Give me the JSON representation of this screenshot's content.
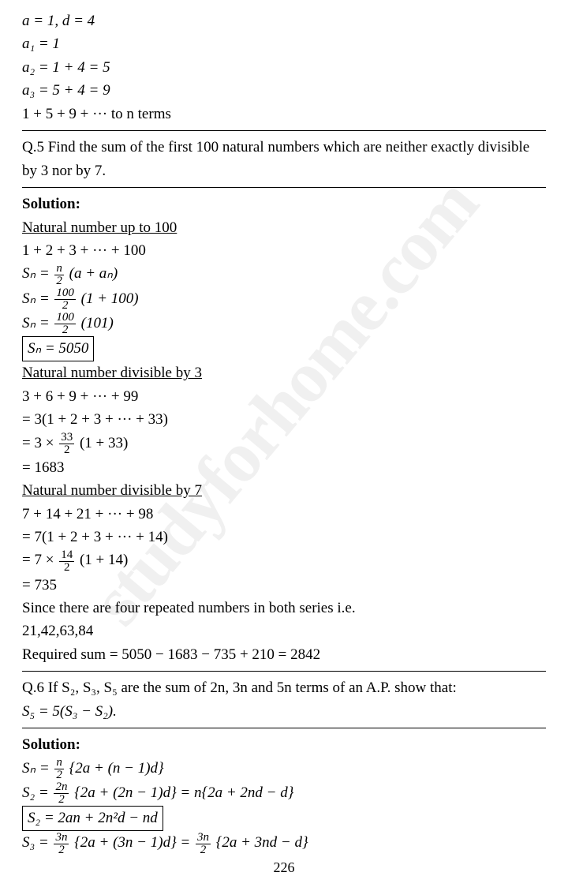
{
  "watermark": "studyforhome.com",
  "page_number": "226",
  "top": {
    "l1": "a = 1, d = 4",
    "l2": "a₁ = 1",
    "l3": "a₂ = 1 + 4 = 5",
    "l4": "a₃ = 5 + 4 = 9",
    "l5": "1 + 5 + 9 + ··· to n terms"
  },
  "q5": {
    "text": "Q.5 Find the sum of the first 100 natural numbers which are neither exactly divisible by 3 nor by 7.",
    "sol_label": "Solution:",
    "h1": "Natural number up to 100",
    "s1": "1 + 2 + 3 + ··· + 100",
    "s2_pre": "Sₙ = ",
    "s2_num": "n",
    "s2_den": "2",
    "s2_post": " (a + aₙ)",
    "s3_pre": "Sₙ = ",
    "s3_num": "100",
    "s3_den": "2",
    "s3_post": " (1 + 100)",
    "s4_pre": "Sₙ = ",
    "s4_num": "100",
    "s4_den": "2",
    "s4_post": " (101)",
    "s5": "Sₙ = 5050",
    "h2": "Natural number divisible by 3",
    "d3a": "3 + 6 + 9 + ··· + 99",
    "d3b": "= 3(1 + 2 + 3 + ··· + 33)",
    "d3c_pre": "= 3 × ",
    "d3c_num": "33",
    "d3c_den": "2",
    "d3c_post": " (1 + 33)",
    "d3d": "= 1683",
    "h3": "Natural number divisible by 7",
    "d7a": "7 + 14 + 21 + ··· + 98",
    "d7b": "= 7(1 + 2 + 3 + ··· + 14)",
    "d7c_pre": "= 7 × ",
    "d7c_num": "14",
    "d7c_den": "2",
    "d7c_post": " (1 + 14)",
    "d7d": "= 735",
    "rep1": "Since there are four repeated numbers in both series i.e.",
    "rep2": "21,42,63,84",
    "req": "Required sum = 5050 − 1683 − 735 + 210 = 2842"
  },
  "q6": {
    "text1": "Q.6 If S₂, S₃, S₅ are the sum of 2n, 3n and 5n terms of an A.P. show that:",
    "text2": "S₅ = 5(S₃ − S₂).",
    "sol_label": "Solution:",
    "l1_pre": "Sₙ = ",
    "l1_num": "n",
    "l1_den": "2",
    "l1_post": " {2a + (n − 1)d}",
    "l2_pre": "S₂ = ",
    "l2_num": "2n",
    "l2_den": "2",
    "l2_post": " {2a + (2n − 1)d} = n{2a + 2nd − d}",
    "l3": "S₂ = 2an + 2n²d − nd",
    "l4_pre": "S₃ = ",
    "l4_num": "3n",
    "l4_den": "2",
    "l4_mid": " {2a + (3n − 1)d} = ",
    "l4_num2": "3n",
    "l4_den2": "2",
    "l4_post": " {2a + 3nd − d}"
  }
}
